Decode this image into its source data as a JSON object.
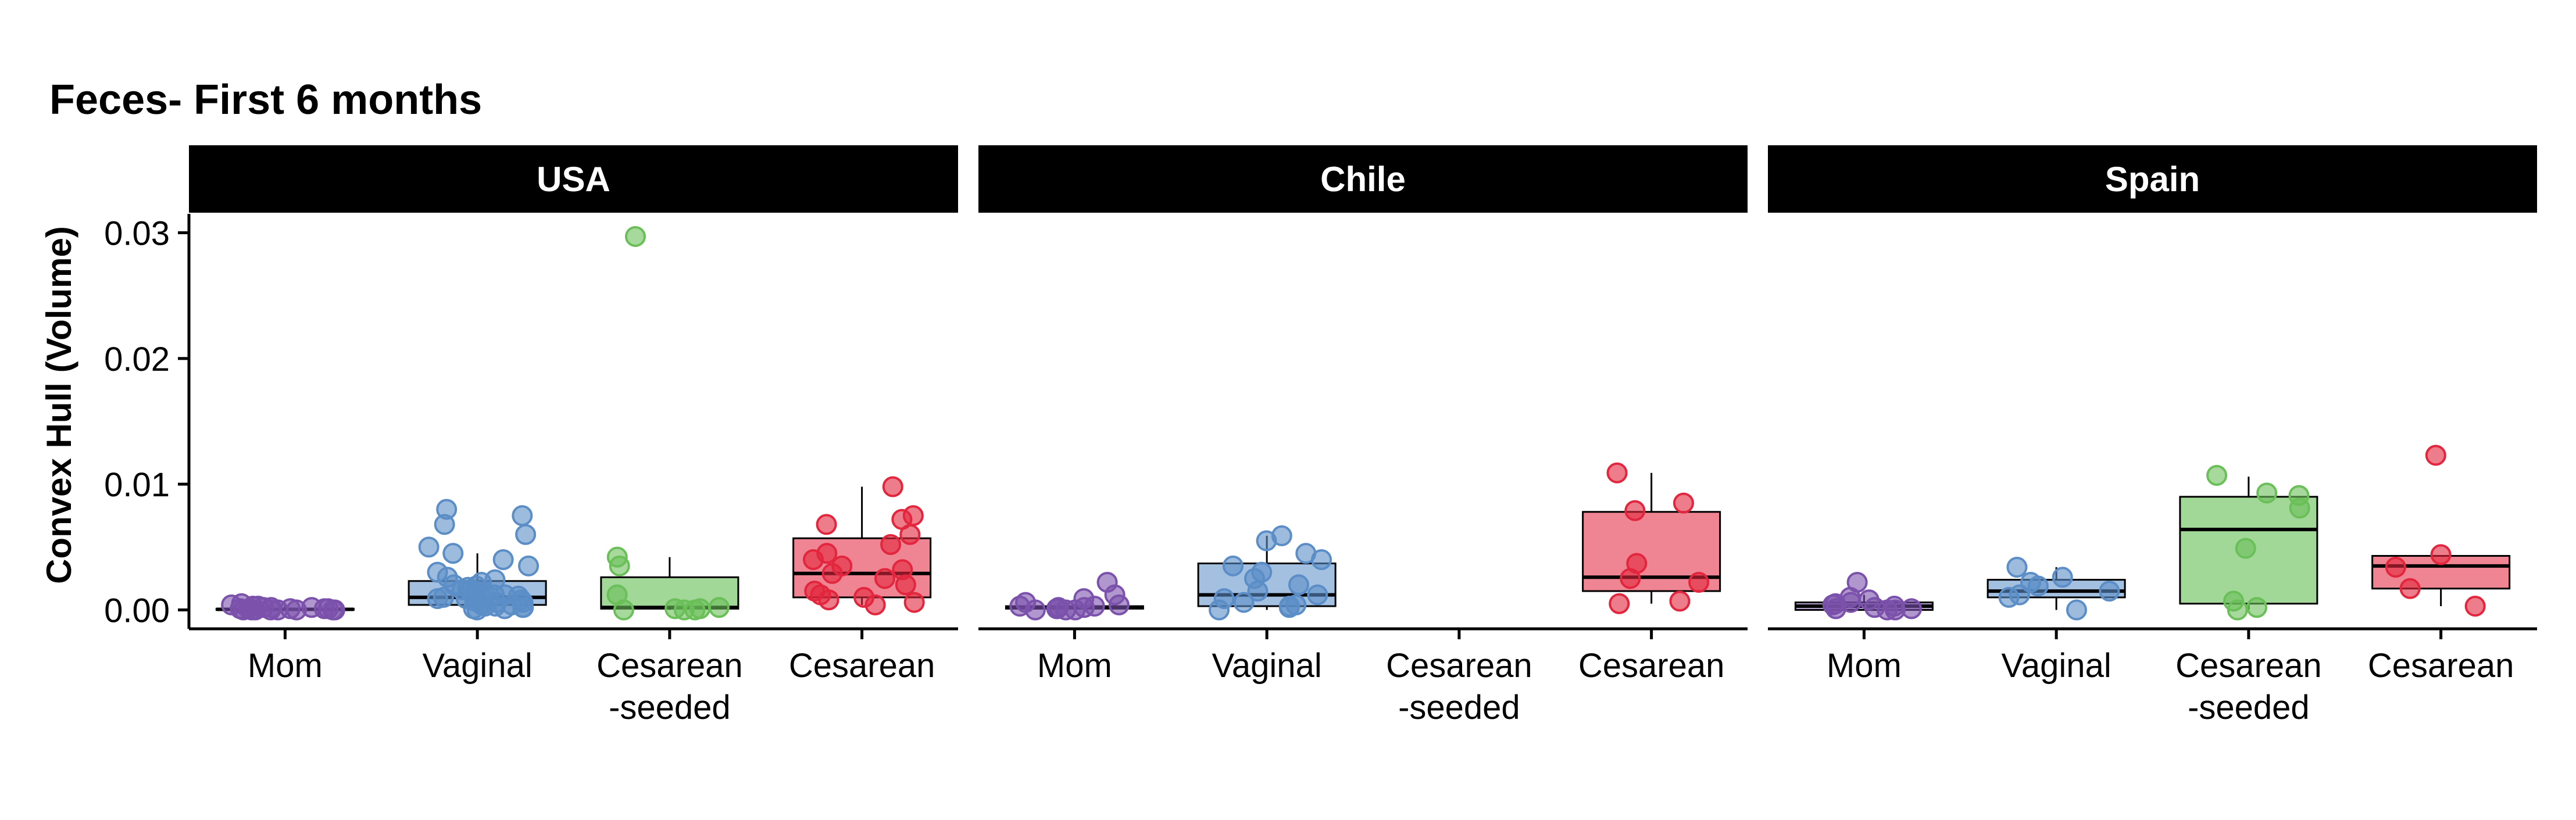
{
  "chart_data": {
    "type": "box",
    "title": "Feces- First 6 months",
    "ylabel": "Convex Hull (Volume)",
    "xlabel": "",
    "ylim": [
      -0.0015,
      0.0315
    ],
    "yticks": [
      0.0,
      0.01,
      0.02,
      0.03
    ],
    "ytick_labels": [
      "0.00",
      "0.01",
      "0.02",
      "0.03"
    ],
    "categories": [
      "Mom",
      "Vaginal",
      "Cesarean-seeded",
      "Cesarean"
    ],
    "category_labels": [
      [
        "Mom"
      ],
      [
        "Vaginal"
      ],
      [
        "Cesarean",
        "-seeded"
      ],
      [
        "Cesarean"
      ]
    ],
    "colors": {
      "Mom": "#7b52ab",
      "Vaginal": "#5b8ec6",
      "Cesarean-seeded": "#6bbf59",
      "Cesarean": "#e2263d"
    },
    "box_fills": {
      "Mom": "#b8a5d2",
      "Vaginal": "#a4c0e1",
      "Cesarean-seeded": "#a1d898",
      "Cesarean": "#ef8592"
    },
    "grid": false,
    "panels": [
      {
        "name": "USA",
        "groups": [
          {
            "category": "Mom",
            "box": {
              "q1": 0.0,
              "median": 5e-05,
              "q3": 0.0001,
              "whisker_low": 0.0,
              "whisker_high": 0.0005
            },
            "points": [
              0.0,
              0.0,
              0.0001,
              0.0,
              0.0002,
              0.0,
              0.0001,
              0.0004,
              0.0003,
              0.0005,
              0.0,
              0.0001,
              0.0002,
              0.0,
              0.0001,
              0.0003,
              0.0,
              0.0002,
              0.0001,
              0.0
            ]
          },
          {
            "category": "Vaginal",
            "box": {
              "q1": 0.0004,
              "median": 0.001,
              "q3": 0.0023,
              "whisker_low": 0.0,
              "whisker_high": 0.0045
            },
            "points": [
              0.0,
              0.0001,
              0.0002,
              0.0003,
              0.0004,
              0.0005,
              0.0006,
              0.0007,
              0.0008,
              0.0009,
              0.001,
              0.0011,
              0.0012,
              0.0013,
              0.0014,
              0.0015,
              0.0016,
              0.0018,
              0.002,
              0.0022,
              0.0024,
              0.0026,
              0.003,
              0.0035,
              0.004,
              0.0045,
              0.005,
              0.006,
              0.0068,
              0.0075,
              0.008,
              0.0002,
              0.0003,
              0.0006,
              0.0009,
              0.0012,
              0.0015,
              0.0019,
              0.0001,
              0.0004
            ]
          },
          {
            "category": "Cesarean-seeded",
            "box": {
              "q1": 0.0001,
              "median": 0.0002,
              "q3": 0.0026,
              "whisker_low": 0.0,
              "whisker_high": 0.0042
            },
            "points": [
              0.0,
              0.0,
              0.0,
              0.0001,
              0.0002,
              0.0001,
              0.0012,
              0.0035,
              0.0042,
              0.0297
            ]
          },
          {
            "category": "Cesarean",
            "box": {
              "q1": 0.001,
              "median": 0.0029,
              "q3": 0.0057,
              "whisker_low": 0.0004,
              "whisker_high": 0.0098
            },
            "points": [
              0.0004,
              0.0006,
              0.0008,
              0.001,
              0.0012,
              0.0015,
              0.002,
              0.0025,
              0.0029,
              0.0032,
              0.0035,
              0.004,
              0.0045,
              0.0052,
              0.006,
              0.0068,
              0.0072,
              0.0075,
              0.0098
            ]
          }
        ]
      },
      {
        "name": "Chile",
        "groups": [
          {
            "category": "Mom",
            "box": {
              "q1": 0.0001,
              "median": 0.0002,
              "q3": 0.0003,
              "whisker_low": 0.0,
              "whisker_high": 0.0005
            },
            "points": [
              0.0,
              0.0001,
              0.0002,
              0.0003,
              0.0,
              0.0002,
              0.0004,
              0.0006,
              0.0009,
              0.0012,
              0.0022,
              0.0001,
              0.0003,
              0.0
            ]
          },
          {
            "category": "Vaginal",
            "box": {
              "q1": 0.0003,
              "median": 0.0012,
              "q3": 0.0037,
              "whisker_low": 0.0,
              "whisker_high": 0.0059
            },
            "points": [
              0.0,
              0.0002,
              0.0004,
              0.0006,
              0.0009,
              0.0012,
              0.0015,
              0.002,
              0.0025,
              0.003,
              0.0035,
              0.004,
              0.0045,
              0.0055,
              0.0059,
              0.0003
            ]
          },
          {
            "category": "Cesarean-seeded",
            "box": null,
            "points": []
          },
          {
            "category": "Cesarean",
            "box": {
              "q1": 0.0015,
              "median": 0.0026,
              "q3": 0.0078,
              "whisker_low": 0.0005,
              "whisker_high": 0.0109
            },
            "points": [
              0.0005,
              0.0007,
              0.0022,
              0.0025,
              0.0037,
              0.0079,
              0.0085,
              0.0109
            ]
          }
        ]
      },
      {
        "name": "Spain",
        "groups": [
          {
            "category": "Mom",
            "box": {
              "q1": 0.0,
              "median": 0.0003,
              "q3": 0.0006,
              "whisker_low": 0.0,
              "whisker_high": 0.0012
            },
            "points": [
              0.0,
              0.0001,
              0.0002,
              0.0003,
              0.0004,
              0.0005,
              0.0006,
              0.0008,
              0.001,
              0.0022,
              0.0,
              0.0001
            ]
          },
          {
            "category": "Vaginal",
            "box": {
              "q1": 0.001,
              "median": 0.0015,
              "q3": 0.0024,
              "whisker_low": 0.0,
              "whisker_high": 0.0034
            },
            "points": [
              0.0,
              0.001,
              0.0012,
              0.0015,
              0.0019,
              0.0022,
              0.0026,
              0.0034
            ]
          },
          {
            "category": "Cesarean-seeded",
            "box": {
              "q1": 0.0005,
              "median": 0.0064,
              "q3": 0.009,
              "whisker_low": 0.0,
              "whisker_high": 0.0106
            },
            "points": [
              0.0,
              0.0002,
              0.0007,
              0.0049,
              0.0081,
              0.0091,
              0.0093,
              0.0107
            ]
          },
          {
            "category": "Cesarean",
            "box": {
              "q1": 0.0017,
              "median": 0.0035,
              "q3": 0.0043,
              "whisker_low": 0.0003,
              "whisker_high": 0.0043
            },
            "points": [
              0.0003,
              0.0017,
              0.0034,
              0.0044,
              0.0123
            ]
          }
        ]
      }
    ]
  }
}
